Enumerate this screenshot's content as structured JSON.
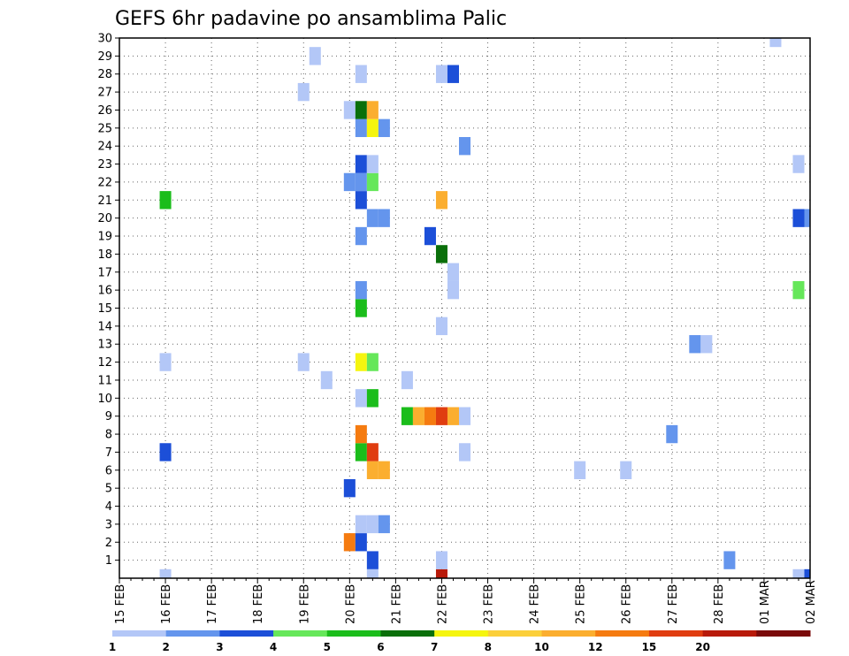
{
  "chart_data": {
    "type": "heatmap",
    "title": "GEFS 6hr padavine po ansamblima Palic",
    "xlabel": "",
    "ylabel": "",
    "x_ticks": [
      "15 FEB",
      "16 FEB",
      "17 FEB",
      "18 FEB",
      "19 FEB",
      "20 FEB",
      "21 FEB",
      "22 FEB",
      "23 FEB",
      "24 FEB",
      "25 FEB",
      "26 FEB",
      "27 FEB",
      "28 FEB",
      "01 MAR",
      "02 MAR"
    ],
    "y_ticks": [
      1,
      2,
      3,
      4,
      5,
      6,
      7,
      8,
      9,
      10,
      11,
      12,
      13,
      14,
      15,
      16,
      17,
      18,
      19,
      20,
      21,
      22,
      23,
      24,
      25,
      26,
      27,
      28,
      29,
      30
    ],
    "x_unit": "days since 15 FEB 00Z, 6-hour steps",
    "xlim": [
      0,
      15
    ],
    "ylim": [
      0,
      30
    ],
    "grid": true,
    "colorbar": {
      "labels": [
        "1",
        "2",
        "3",
        "4",
        "5",
        "6",
        "7",
        "8",
        "10",
        "12",
        "15",
        "20"
      ],
      "colors": [
        "#b3c7f7",
        "#6495ed",
        "#1c4fd8",
        "#66e75a",
        "#1bbd1b",
        "#0a6f0a",
        "#f5f50f",
        "#fbcf3a",
        "#fbae2f",
        "#f57b10",
        "#e03d10",
        "#b81a0a",
        "#7a0a0a"
      ]
    },
    "cells": [
      {
        "x": 1.0,
        "y": 0,
        "c": 0
      },
      {
        "x": 5.5,
        "y": 0,
        "c": 0
      },
      {
        "x": 7.0,
        "y": 0,
        "c": 11
      },
      {
        "x": 14.75,
        "y": 0,
        "c": 0
      },
      {
        "x": 15.0,
        "y": 0,
        "c": 2
      },
      {
        "x": 5.5,
        "y": 1,
        "c": 2
      },
      {
        "x": 7.0,
        "y": 1,
        "c": 0
      },
      {
        "x": 13.25,
        "y": 1,
        "c": 1
      },
      {
        "x": 5.0,
        "y": 2,
        "c": 9
      },
      {
        "x": 5.25,
        "y": 2,
        "c": 2
      },
      {
        "x": 5.25,
        "y": 3,
        "c": 0
      },
      {
        "x": 5.5,
        "y": 3,
        "c": 0
      },
      {
        "x": 5.75,
        "y": 3,
        "c": 1
      },
      {
        "x": 5.0,
        "y": 5,
        "c": 2
      },
      {
        "x": 5.5,
        "y": 6,
        "c": 8
      },
      {
        "x": 5.75,
        "y": 6,
        "c": 8
      },
      {
        "x": 10.0,
        "y": 6,
        "c": 0
      },
      {
        "x": 11.0,
        "y": 6,
        "c": 0
      },
      {
        "x": 1.0,
        "y": 7,
        "c": 2
      },
      {
        "x": 5.25,
        "y": 7,
        "c": 4
      },
      {
        "x": 5.5,
        "y": 7,
        "c": 10
      },
      {
        "x": 7.5,
        "y": 7,
        "c": 0
      },
      {
        "x": 5.25,
        "y": 8,
        "c": 9
      },
      {
        "x": 12.0,
        "y": 8,
        "c": 1
      },
      {
        "x": 6.25,
        "y": 9,
        "c": 4
      },
      {
        "x": 6.5,
        "y": 9,
        "c": 8
      },
      {
        "x": 6.75,
        "y": 9,
        "c": 9
      },
      {
        "x": 7.0,
        "y": 9,
        "c": 10
      },
      {
        "x": 7.25,
        "y": 9,
        "c": 8
      },
      {
        "x": 7.5,
        "y": 9,
        "c": 0
      },
      {
        "x": 5.25,
        "y": 10,
        "c": 0
      },
      {
        "x": 5.5,
        "y": 10,
        "c": 4
      },
      {
        "x": 4.5,
        "y": 11,
        "c": 0
      },
      {
        "x": 6.25,
        "y": 11,
        "c": 0
      },
      {
        "x": 1.0,
        "y": 12,
        "c": 0
      },
      {
        "x": 4.0,
        "y": 12,
        "c": 0
      },
      {
        "x": 5.25,
        "y": 12,
        "c": 6
      },
      {
        "x": 5.5,
        "y": 12,
        "c": 3
      },
      {
        "x": 12.5,
        "y": 13,
        "c": 1
      },
      {
        "x": 12.75,
        "y": 13,
        "c": 0
      },
      {
        "x": 7.0,
        "y": 14,
        "c": 0
      },
      {
        "x": 5.25,
        "y": 15,
        "c": 4
      },
      {
        "x": 5.25,
        "y": 16,
        "c": 1
      },
      {
        "x": 7.25,
        "y": 16,
        "c": 0
      },
      {
        "x": 14.75,
        "y": 16,
        "c": 3
      },
      {
        "x": 7.25,
        "y": 17,
        "c": 0
      },
      {
        "x": 7.0,
        "y": 18,
        "c": 5
      },
      {
        "x": 5.25,
        "y": 19,
        "c": 1
      },
      {
        "x": 6.75,
        "y": 19,
        "c": 2
      },
      {
        "x": 5.5,
        "y": 20,
        "c": 1
      },
      {
        "x": 5.75,
        "y": 20,
        "c": 1
      },
      {
        "x": 14.75,
        "y": 20,
        "c": 2
      },
      {
        "x": 15.0,
        "y": 20,
        "c": 1
      },
      {
        "x": 1.0,
        "y": 21,
        "c": 4
      },
      {
        "x": 5.25,
        "y": 21,
        "c": 2
      },
      {
        "x": 7.0,
        "y": 21,
        "c": 8
      },
      {
        "x": 5.0,
        "y": 22,
        "c": 1
      },
      {
        "x": 5.25,
        "y": 22,
        "c": 1
      },
      {
        "x": 5.5,
        "y": 22,
        "c": 3
      },
      {
        "x": 5.25,
        "y": 23,
        "c": 2
      },
      {
        "x": 5.5,
        "y": 23,
        "c": 0
      },
      {
        "x": 14.75,
        "y": 23,
        "c": 0
      },
      {
        "x": 7.5,
        "y": 24,
        "c": 1
      },
      {
        "x": 5.25,
        "y": 25,
        "c": 1
      },
      {
        "x": 5.5,
        "y": 25,
        "c": 6
      },
      {
        "x": 5.75,
        "y": 25,
        "c": 1
      },
      {
        "x": 5.0,
        "y": 26,
        "c": 0
      },
      {
        "x": 5.25,
        "y": 26,
        "c": 5
      },
      {
        "x": 5.5,
        "y": 26,
        "c": 8
      },
      {
        "x": 4.0,
        "y": 27,
        "c": 0
      },
      {
        "x": 5.25,
        "y": 28,
        "c": 0
      },
      {
        "x": 7.0,
        "y": 28,
        "c": 0
      },
      {
        "x": 7.25,
        "y": 28,
        "c": 2
      },
      {
        "x": 4.25,
        "y": 29,
        "c": 0
      },
      {
        "x": 14.25,
        "y": 30,
        "c": 0
      }
    ]
  }
}
